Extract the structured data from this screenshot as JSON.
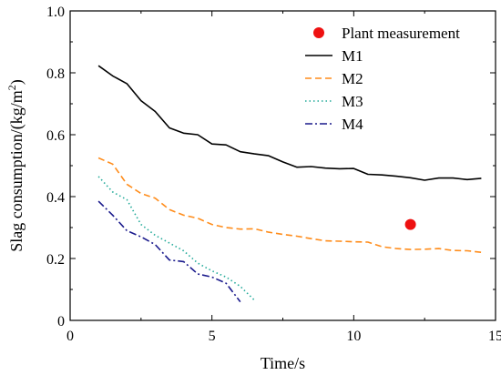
{
  "chart_data": {
    "type": "line",
    "xlabel": "Time/s",
    "ylabel_prefix": "Slag consumption/(kg/m",
    "ylabel_sup": "2",
    "ylabel_suffix": ")",
    "xlim": [
      0,
      15
    ],
    "ylim": [
      0,
      1.0
    ],
    "xticks": [
      0,
      5,
      10,
      15
    ],
    "xtick_labels": [
      "0",
      "5",
      "10",
      "15"
    ],
    "yticks": [
      0,
      0.2,
      0.4,
      0.6,
      0.8,
      1.0
    ],
    "ytick_labels": [
      "0",
      "0.2",
      "0.4",
      "0.6",
      "0.8",
      "1.0"
    ],
    "grid": false,
    "legend_position": "top-right",
    "points": [
      {
        "name": "Plant measurement",
        "x": 12,
        "y": 0.31,
        "color": "#ee1111"
      }
    ],
    "series": [
      {
        "name": "M1",
        "color": "#000000",
        "dash": "solid",
        "x": [
          1,
          1.5,
          2,
          2.5,
          3,
          3.5,
          4,
          4.5,
          5,
          5.5,
          6,
          6.5,
          7,
          7.5,
          8,
          8.5,
          9,
          9.5,
          10,
          10.5,
          11,
          11.5,
          12,
          12.5,
          13,
          13.5,
          14,
          14.5
        ],
        "y": [
          0.823,
          0.79,
          0.765,
          0.71,
          0.675,
          0.622,
          0.605,
          0.6,
          0.57,
          0.567,
          0.545,
          0.538,
          0.532,
          0.512,
          0.495,
          0.497,
          0.492,
          0.49,
          0.491,
          0.472,
          0.47,
          0.466,
          0.461,
          0.453,
          0.46,
          0.46,
          0.455,
          0.459
        ]
      },
      {
        "name": "M2",
        "color": "#ff8c1a",
        "dash": "dashed",
        "x": [
          1,
          1.5,
          2,
          2.5,
          3,
          3.5,
          4,
          4.5,
          5,
          5.5,
          6,
          6.5,
          7,
          7.5,
          8,
          8.5,
          9,
          9.5,
          10,
          10.5,
          11,
          11.5,
          12,
          12.5,
          13,
          13.5,
          14,
          14.5
        ],
        "y": [
          0.525,
          0.505,
          0.44,
          0.41,
          0.395,
          0.358,
          0.34,
          0.33,
          0.31,
          0.3,
          0.295,
          0.296,
          0.285,
          0.278,
          0.272,
          0.264,
          0.257,
          0.256,
          0.254,
          0.253,
          0.238,
          0.232,
          0.229,
          0.23,
          0.232,
          0.226,
          0.225,
          0.22
        ]
      },
      {
        "name": "M3",
        "color": "#22aa99",
        "dash": "dotted",
        "x": [
          1,
          1.5,
          2,
          2.5,
          3,
          3.5,
          4,
          4.5,
          5,
          5.5,
          6,
          6.5
        ],
        "y": [
          0.465,
          0.415,
          0.39,
          0.31,
          0.275,
          0.25,
          0.225,
          0.185,
          0.16,
          0.14,
          0.11,
          0.065
        ]
      },
      {
        "name": "M4",
        "color": "#1a1a8c",
        "dash": "dashdot",
        "x": [
          1,
          1.5,
          2,
          2.5,
          3,
          3.5,
          4,
          4.5,
          5,
          5.5,
          6
        ],
        "y": [
          0.385,
          0.34,
          0.29,
          0.27,
          0.245,
          0.195,
          0.19,
          0.15,
          0.14,
          0.12,
          0.06
        ]
      }
    ]
  }
}
